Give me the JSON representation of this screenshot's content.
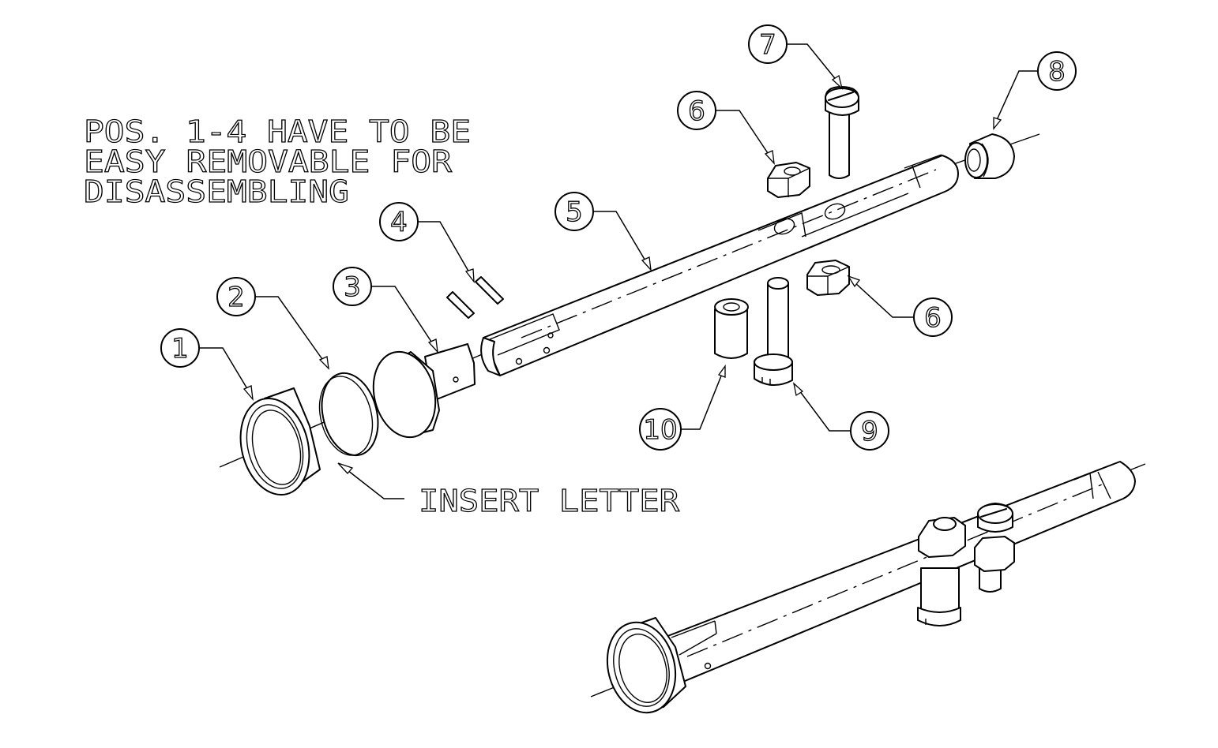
{
  "note": {
    "lines": [
      "POS. 1-4 HAVE TO BE",
      "EASY REMOVABLE FOR",
      "DISASSEMBLING"
    ]
  },
  "insert_label": "INSERT LETTER",
  "balloons": [
    {
      "id": "1",
      "label": "1"
    },
    {
      "id": "2",
      "label": "2"
    },
    {
      "id": "3",
      "label": "3"
    },
    {
      "id": "4",
      "label": "4"
    },
    {
      "id": "5",
      "label": "5"
    },
    {
      "id": "6a",
      "label": "6"
    },
    {
      "id": "6b",
      "label": "6"
    },
    {
      "id": "7",
      "label": "7"
    },
    {
      "id": "8",
      "label": "8"
    },
    {
      "id": "9",
      "label": "9"
    },
    {
      "id": "10",
      "label": "10"
    }
  ]
}
